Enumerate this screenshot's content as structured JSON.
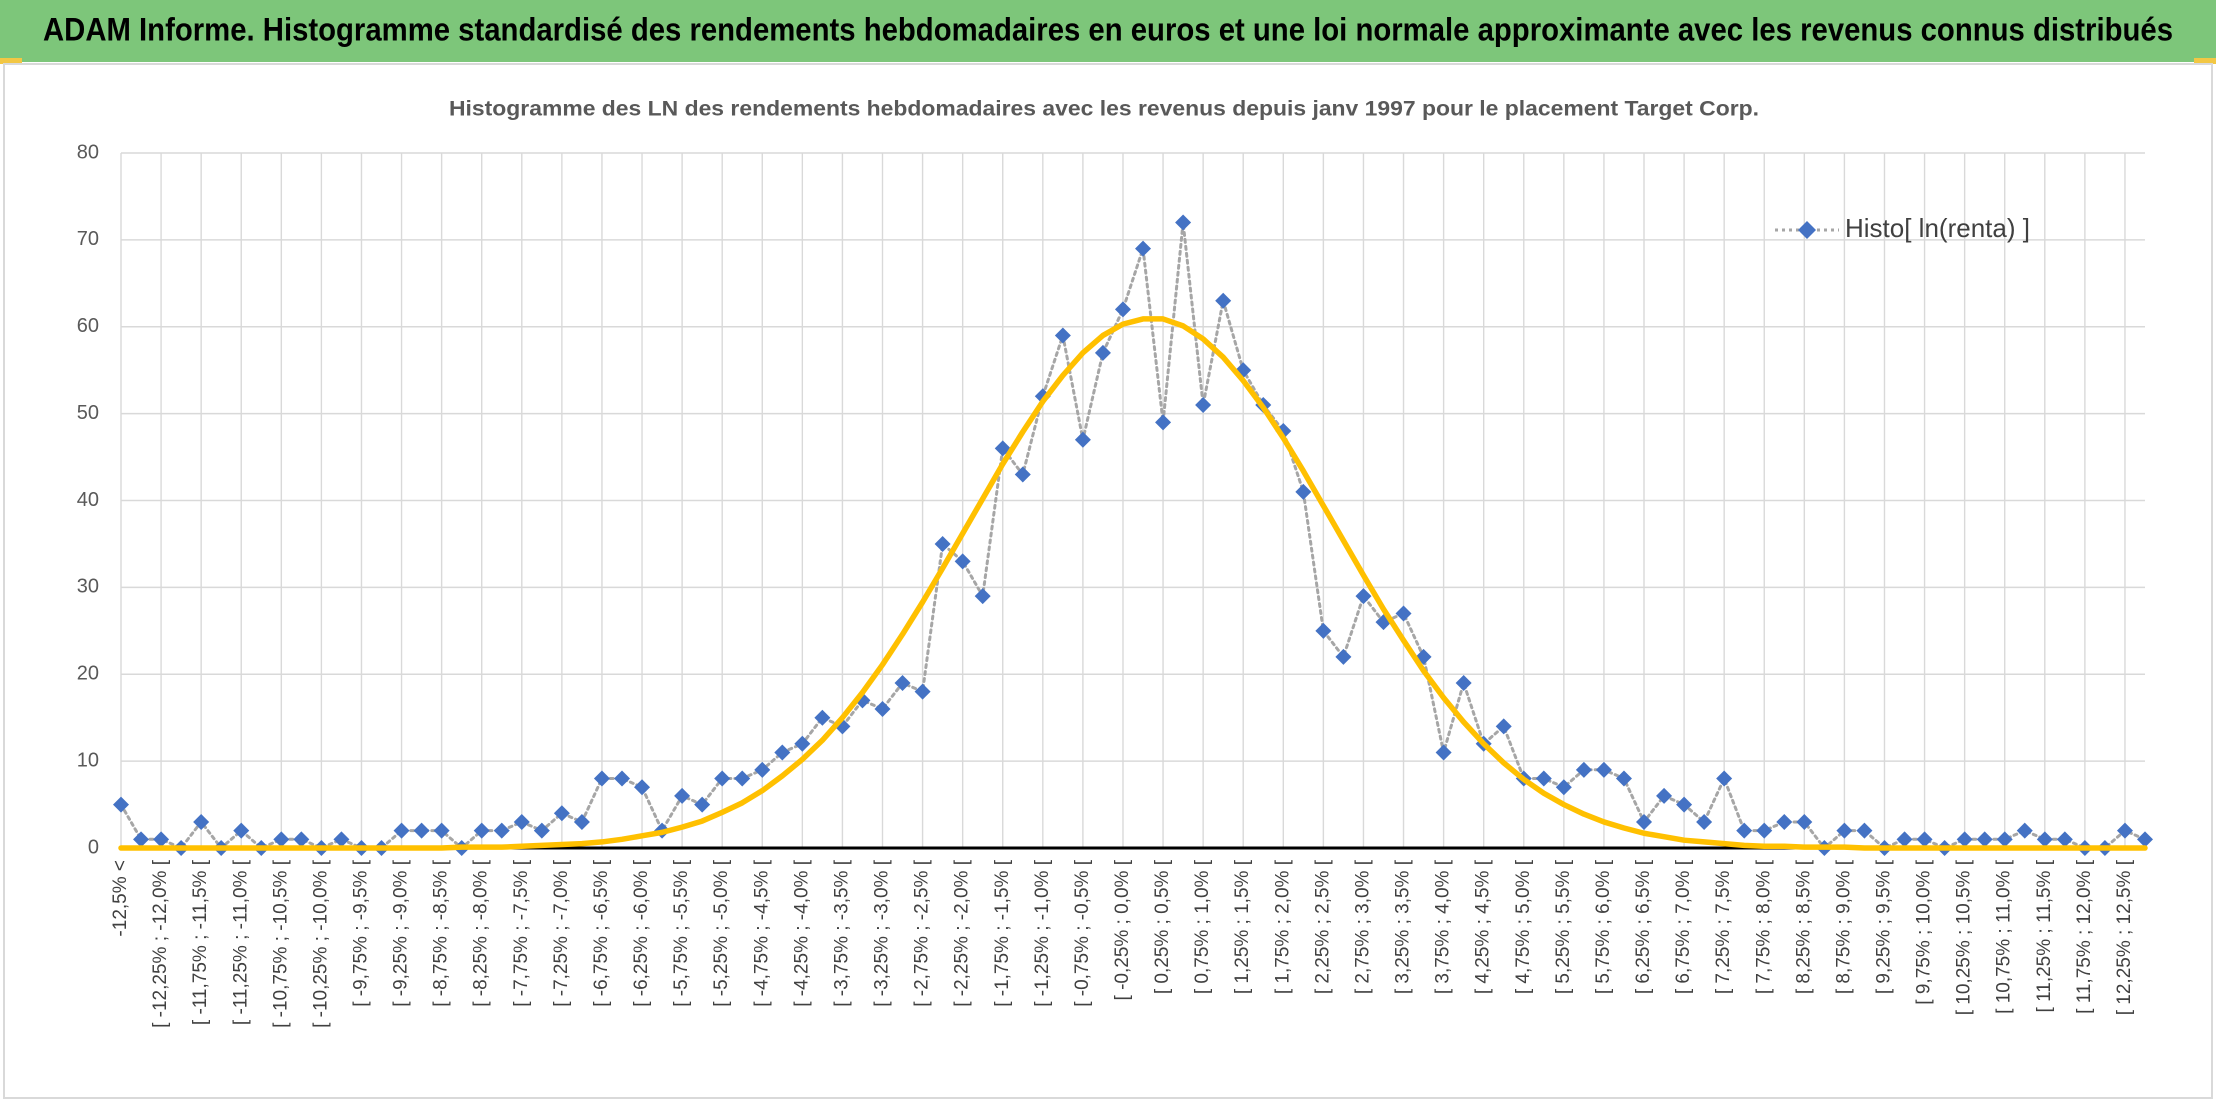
{
  "header": {
    "title": "ADAM Informe. Histogramme standardisé des rendements hebdomadaires en euros et une loi normale approximante avec les revenus connus distribués"
  },
  "chart_data": {
    "type": "line",
    "title": "Histogramme des LN des rendements hebdomadaires avec les revenus depuis janv 1997 pour le placement Target Corp.",
    "categories": [
      "-12,5% <",
      null,
      "[ -12,25% ; -12,0% [",
      null,
      "[ -11,75% ; -11,5% [",
      null,
      "[ -11,25% ; -11,0% [",
      null,
      "[ -10,75% ; -10,5% [",
      null,
      "[ -10,25% ; -10,0% [",
      null,
      "[ -9,75% ; -9,5% [",
      null,
      "[ -9,25% ; -9,0% [",
      null,
      "[ -8,75% ; -8,5% [",
      null,
      "[ -8,25% ; -8,0% [",
      null,
      "[ -7,75% ; -7,5% [",
      null,
      "[ -7,25% ; -7,0% [",
      null,
      "[ -6,75% ; -6,5% [",
      null,
      "[ -6,25% ; -6,0% [",
      null,
      "[ -5,75% ; -5,5% [",
      null,
      "[ -5,25% ; -5,0% [",
      null,
      "[ -4,75% ; -4,5% [",
      null,
      "[ -4,25% ; -4,0% [",
      null,
      "[ -3,75% ; -3,5% [",
      null,
      "[ -3,25% ; -3,0% [",
      null,
      "[ -2,75% ; -2,5% [",
      null,
      "[ -2,25% ; -2,0% [",
      null,
      "[ -1,75% ; -1,5% [",
      null,
      "[ -1,25% ; -1,0% [",
      null,
      "[ -0,75% ; -0,5% [",
      null,
      "[ -0,25% ; 0,0% [",
      null,
      "[ 0,25% ; 0,5% [",
      null,
      "[ 0,75% ; 1,0% [",
      null,
      "[ 1,25% ; 1,5% [",
      null,
      "[ 1,75% ; 2,0% [",
      null,
      "[ 2,25% ; 2,5% [",
      null,
      "[ 2,75% ; 3,0% [",
      null,
      "[ 3,25% ; 3,5% [",
      null,
      "[ 3,75% ; 4,0% [",
      null,
      "[ 4,25% ; 4,5% [",
      null,
      "[ 4,75% ; 5,0% [",
      null,
      "[ 5,25% ; 5,5% [",
      null,
      "[ 5,75% ; 6,0% [",
      null,
      "[ 6,25% ; 6,5% [",
      null,
      "[ 6,75% ; 7,0% [",
      null,
      "[ 7,25% ; 7,5% [",
      null,
      "[ 7,75% ; 8,0% [",
      null,
      "[ 8,25% ; 8,5% [",
      null,
      "[ 8,75% ; 9,0% [",
      null,
      "[ 9,25% ; 9,5% [",
      null,
      "[ 9,75% ; 10,0% [",
      null,
      "[ 10,25% ; 10,5% [",
      null,
      "[ 10,75% ; 11,0% [",
      null,
      "[ 11,25% ; 11,5% [",
      null,
      "[ 11,75% ; 12,0% [",
      null,
      "[ 12,25% ; 12,5% [",
      null
    ],
    "series": [
      {
        "name": "Histo[ ln(renta) ]",
        "color": "#4472c4",
        "line_color": "#a6a6a6",
        "values": [
          5,
          1,
          1,
          0,
          3,
          0,
          2,
          0,
          1,
          1,
          0,
          1,
          0,
          0,
          2,
          2,
          2,
          0,
          2,
          2,
          3,
          2,
          4,
          3,
          8,
          8,
          7,
          2,
          6,
          5,
          8,
          8,
          9,
          11,
          12,
          15,
          14,
          17,
          16,
          19,
          18,
          35,
          33,
          29,
          46,
          43,
          52,
          59,
          47,
          57,
          62,
          69,
          49,
          72,
          51,
          63,
          55,
          51,
          48,
          41,
          25,
          22,
          29,
          26,
          27,
          22,
          11,
          19,
          12,
          14,
          8,
          8,
          7,
          9,
          9,
          8,
          3,
          6,
          5,
          3,
          8,
          2,
          2,
          3,
          3,
          0,
          2,
          2,
          0,
          1,
          1,
          0,
          1,
          1,
          1,
          2,
          1,
          1,
          0,
          0,
          2,
          1
        ]
      },
      {
        "color": "#ffc000",
        "values": [
          0,
          0,
          0,
          0,
          0,
          0,
          0,
          0,
          0,
          0,
          0,
          0,
          0,
          0,
          0,
          0,
          0,
          0.1,
          0.1,
          0.1,
          0.2,
          0.3,
          0.4,
          0.5,
          0.7,
          1.0,
          1.4,
          1.8,
          2.4,
          3.1,
          4.1,
          5.2,
          6.6,
          8.3,
          10.2,
          12.4,
          15.0,
          17.9,
          21.1,
          24.6,
          28.3,
          32.2,
          36.2,
          40.2,
          44.2,
          47.9,
          51.4,
          54.4,
          57.0,
          59.0,
          60.3,
          60.9,
          60.9,
          60.1,
          58.6,
          56.5,
          53.8,
          50.7,
          47.2,
          43.4,
          39.4,
          35.4,
          31.4,
          27.5,
          23.9,
          20.4,
          17.3,
          14.5,
          12.0,
          9.8,
          7.9,
          6.3,
          5.0,
          3.9,
          3.0,
          2.3,
          1.7,
          1.3,
          0.9,
          0.7,
          0.5,
          0.3,
          0.2,
          0.2,
          0.1,
          0.1,
          0.1,
          0,
          0,
          0,
          0,
          0,
          0,
          0,
          0,
          0,
          0,
          0,
          0,
          0,
          0,
          0
        ]
      }
    ],
    "ylim": [
      0,
      80
    ],
    "yticks": [
      0,
      10,
      20,
      30,
      40,
      50,
      60,
      70,
      80
    ],
    "grid": true,
    "legend": "top-right"
  }
}
